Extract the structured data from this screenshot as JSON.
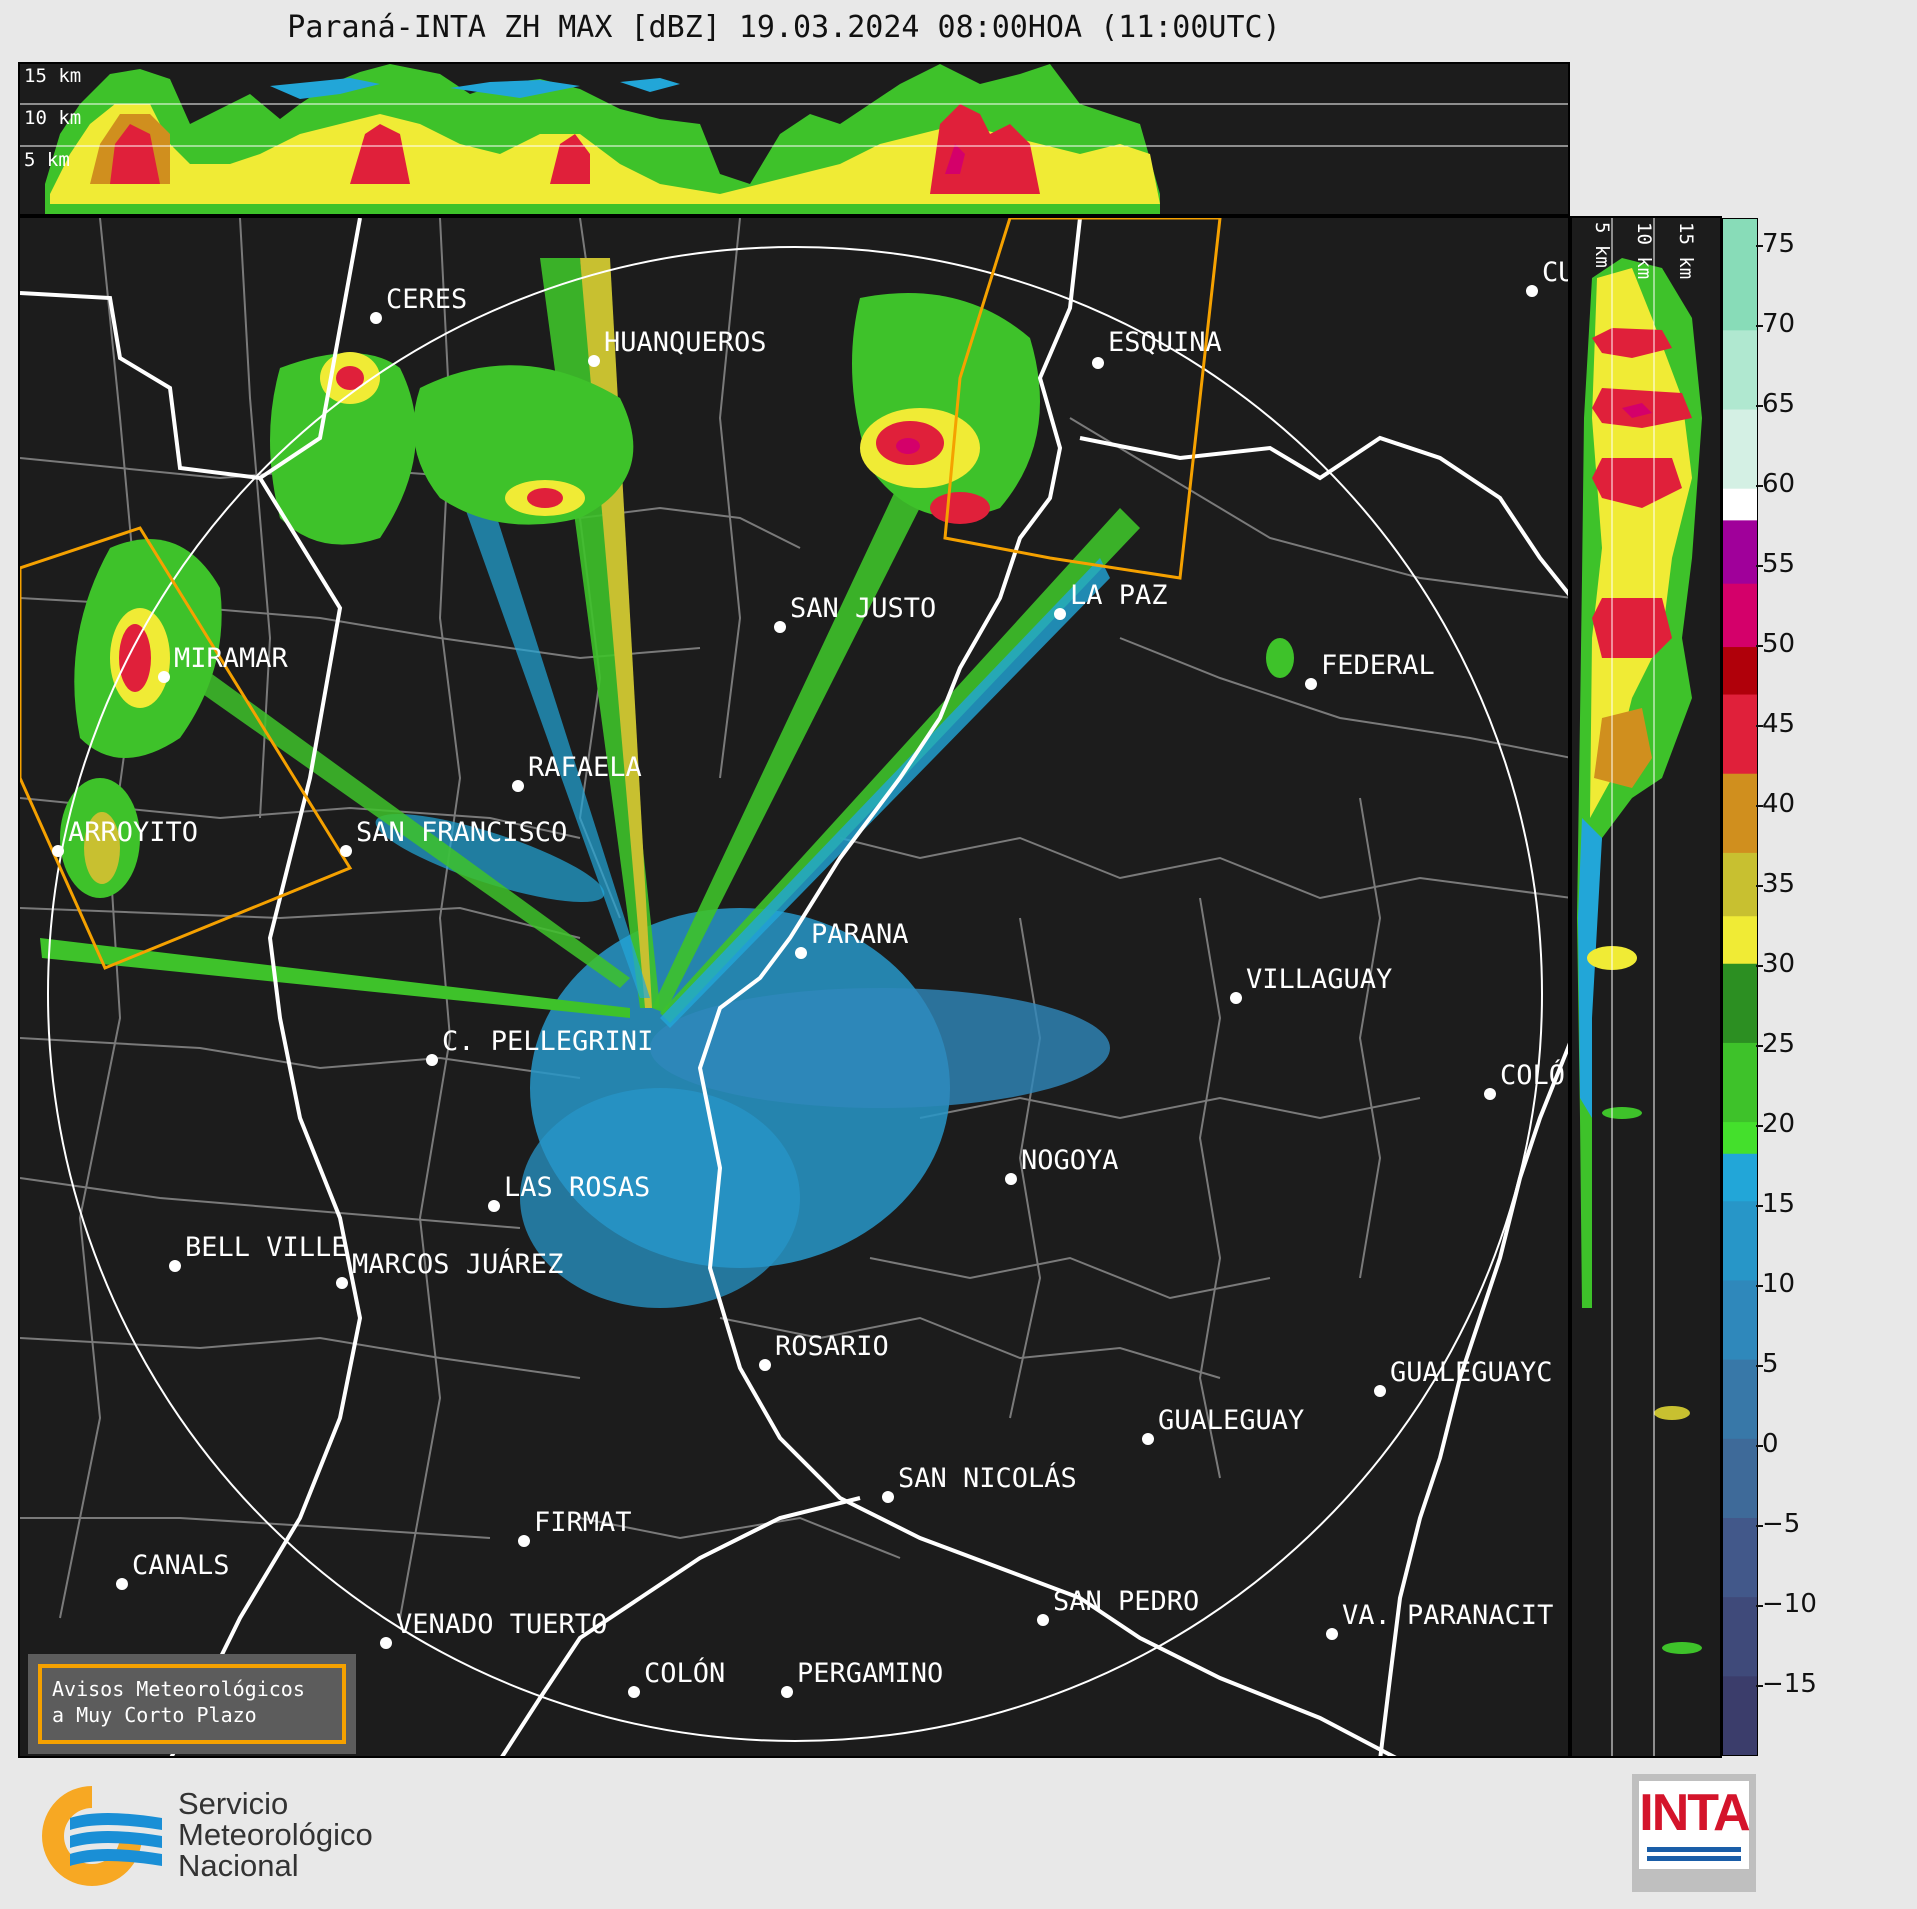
{
  "title": "Paraná-INTA ZH MAX [dBZ] 19.03.2024 08:00HOA (11:00UTC)",
  "top_panel": {
    "labels": [
      "15 km",
      "10 km",
      "5 km"
    ]
  },
  "side_panel": {
    "labels": [
      "5 km",
      "10 km",
      "15 km"
    ]
  },
  "colorbar": {
    "ticks": [
      "75",
      "70",
      "65",
      "60",
      "55",
      "50",
      "45",
      "40",
      "35",
      "30",
      "25",
      "20",
      "15",
      "10",
      "5",
      "0",
      "−5",
      "−10",
      "−15"
    ],
    "min": -20,
    "max": 77,
    "bands": [
      {
        "from": -20,
        "to": -15,
        "color": "#3b3d6b"
      },
      {
        "from": -15,
        "to": -10,
        "color": "#3f4a7a"
      },
      {
        "from": -10,
        "to": -5,
        "color": "#42588a"
      },
      {
        "from": -5,
        "to": 0,
        "color": "#3e6a99"
      },
      {
        "from": 0,
        "to": 5,
        "color": "#3878a8"
      },
      {
        "from": 5,
        "to": 10,
        "color": "#2f88bb"
      },
      {
        "from": 10,
        "to": 15,
        "color": "#2796c8"
      },
      {
        "from": 15,
        "to": 18,
        "color": "#22a6d8"
      },
      {
        "from": 18,
        "to": 20,
        "color": "#44e02c"
      },
      {
        "from": 20,
        "to": 25,
        "color": "#3ec22a"
      },
      {
        "from": 25,
        "to": 30,
        "color": "#2c8f22"
      },
      {
        "from": 30,
        "to": 33,
        "color": "#f0eb35"
      },
      {
        "from": 33,
        "to": 37,
        "color": "#c8c030"
      },
      {
        "from": 37,
        "to": 42,
        "color": "#d08f1e"
      },
      {
        "from": 42,
        "to": 47,
        "color": "#e0203a"
      },
      {
        "from": 47,
        "to": 50,
        "color": "#b0000a"
      },
      {
        "from": 50,
        "to": 54,
        "color": "#d4006a"
      },
      {
        "from": 54,
        "to": 58,
        "color": "#a0009a"
      },
      {
        "from": 58,
        "to": 60,
        "color": "#ffffff"
      },
      {
        "from": 60,
        "to": 65,
        "color": "#d4f0e4"
      },
      {
        "from": 65,
        "to": 70,
        "color": "#b0e8d0"
      },
      {
        "from": 70,
        "to": 77,
        "color": "#88dcb8"
      }
    ]
  },
  "cities": [
    {
      "name": "CERES"
    },
    {
      "name": "HUANQUEROS"
    },
    {
      "name": "ESQUINA"
    },
    {
      "name": "CU"
    },
    {
      "name": "MIRAMAR"
    },
    {
      "name": "SAN JUSTO"
    },
    {
      "name": "LA PAZ"
    },
    {
      "name": "FEDERAL"
    },
    {
      "name": "RAFAELA"
    },
    {
      "name": "ARROYITO"
    },
    {
      "name": "SAN FRANCISCO"
    },
    {
      "name": "PARANA"
    },
    {
      "name": "VILLAGUAY"
    },
    {
      "name": "C. PELLEGRINI"
    },
    {
      "name": "COLÓ"
    },
    {
      "name": "NOGOYA"
    },
    {
      "name": "LAS ROSAS"
    },
    {
      "name": "BELL VILLE"
    },
    {
      "name": "MARCOS JUÁREZ"
    },
    {
      "name": "ROSARIO"
    },
    {
      "name": "GUALEGUAYC"
    },
    {
      "name": "GUALEGUAY"
    },
    {
      "name": "SAN NICOLÁS"
    },
    {
      "name": "FIRMAT"
    },
    {
      "name": "CANALS"
    },
    {
      "name": "SAN PEDRO"
    },
    {
      "name": "VA. PARANACIT"
    },
    {
      "name": "VENADO TUERTO"
    },
    {
      "name": "COLÓN"
    },
    {
      "name": "PERGAMINO"
    }
  ],
  "aviso": {
    "line1": "Avisos Meteorológicos",
    "line2": "a Muy Corto Plazo"
  },
  "smn": {
    "line1": "Servicio",
    "line2": "Meteorológico",
    "line3": "Nacional"
  },
  "inta": {
    "label": "INTA"
  }
}
